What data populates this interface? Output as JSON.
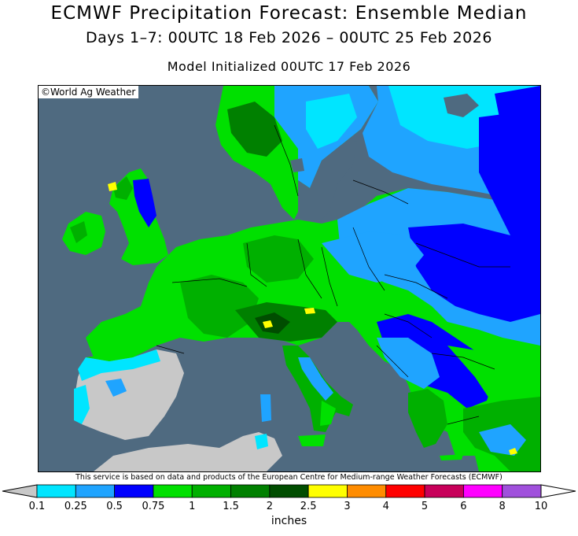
{
  "header": {
    "title": "ECMWF Precipitation Forecast: Ensemble Median",
    "subtitle": "Days 1–7: 00UTC 18 Feb 2026 – 00UTC 25 Feb 2026",
    "init": "Model Initialized 00UTC 17 Feb 2026"
  },
  "map": {
    "copyright": "©World Ag Weather",
    "ocean_color": "#4f6a80",
    "land_nodata_color": "#c8c8c8"
  },
  "disclaimer": "This service is based on data and products of the European Centre for Medium-range Weather Forecasts (ECMWF)",
  "legend": {
    "units": "inches",
    "labels": [
      "0.1",
      "0.25",
      "0.5",
      "0.75",
      "1",
      "1.5",
      "2",
      "2.5",
      "3",
      "4",
      "5",
      "6",
      "8",
      "10"
    ],
    "colors": [
      "#c8c8c8",
      "#00e5ff",
      "#1fa4ff",
      "#0000ff",
      "#00e000",
      "#00b000",
      "#008000",
      "#004d00",
      "#ffff00",
      "#ff8c00",
      "#ff0000",
      "#c8005a",
      "#ff00ff",
      "#a050dc",
      "#ffffff"
    ]
  }
}
